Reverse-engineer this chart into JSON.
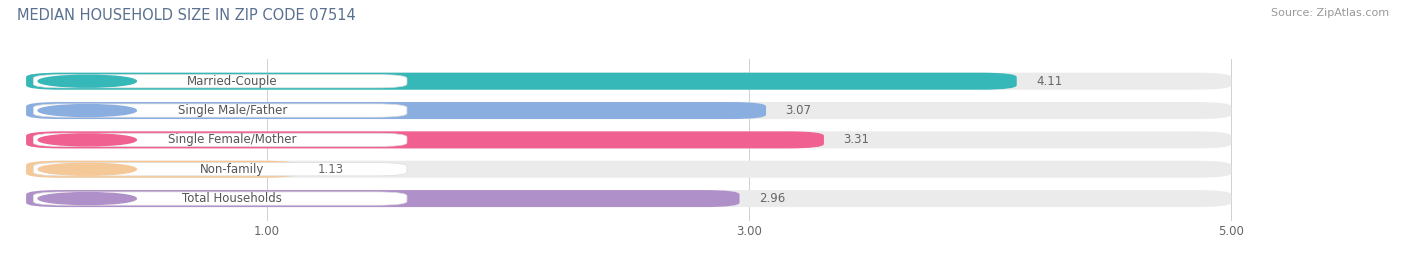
{
  "title": "MEDIAN HOUSEHOLD SIZE IN ZIP CODE 07514",
  "source": "Source: ZipAtlas.com",
  "categories": [
    "Married-Couple",
    "Single Male/Father",
    "Single Female/Mother",
    "Non-family",
    "Total Households"
  ],
  "values": [
    4.11,
    3.07,
    3.31,
    1.13,
    2.96
  ],
  "bar_colors": [
    "#36b8b8",
    "#8aaee0",
    "#f06090",
    "#f5c898",
    "#b090c8"
  ],
  "bar_bg_color": "#ebebeb",
  "xlim": [
    0,
    5.3
  ],
  "xmin": 0,
  "xmax": 5.0,
  "xticks": [
    1.0,
    3.0,
    5.0
  ],
  "xtick_labels": [
    "1.00",
    "3.00",
    "5.00"
  ],
  "label_fontsize": 8.5,
  "value_fontsize": 8.5,
  "title_fontsize": 10.5,
  "source_fontsize": 8,
  "bar_height": 0.58,
  "background_color": "#ffffff",
  "label_bg_color": "#ffffff",
  "title_color": "#5a7090",
  "value_color": "#666666",
  "text_color": "#555555"
}
